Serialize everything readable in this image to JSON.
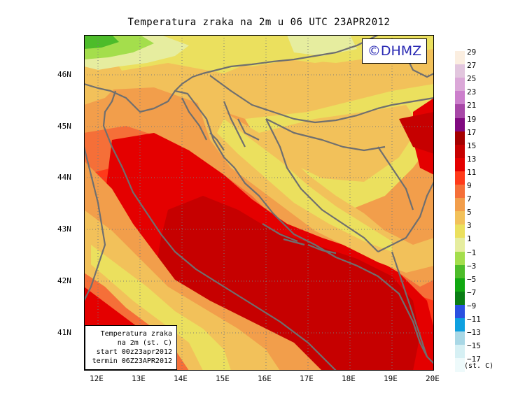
{
  "title": "Temperatura zraka na 2m u 06 UTC 23APR2012",
  "watermark": "©DHMZ",
  "lat_labels": [
    "46N",
    "45N",
    "44N",
    "43N",
    "42N",
    "41N"
  ],
  "lon_labels": [
    "12E",
    "13E",
    "14E",
    "15E",
    "16E",
    "17E",
    "18E",
    "19E",
    "20E"
  ],
  "info_box": {
    "line1": "Temperatura zraka",
    "line2": "na 2m (st. C)",
    "line3": "start 00z23apr2012",
    "line4": "termin 06Z23APR2012"
  },
  "legend": {
    "unit": "(st. C)",
    "labels": [
      "29",
      "27",
      "25",
      "23",
      "21",
      "19",
      "17",
      "15",
      "13",
      "11",
      "9",
      "7",
      "5",
      "3",
      "1",
      "−1",
      "−3",
      "−5",
      "−7",
      "−9",
      "−11",
      "−13",
      "−15",
      "−17"
    ],
    "colors": [
      "#fbeee0",
      "#e2c6de",
      "#dba8d8",
      "#cc7fcc",
      "#a747a7",
      "#800a80",
      "#a50000",
      "#c60000",
      "#e40000",
      "#ff3a1a",
      "#f56f38",
      "#f29e4b",
      "#f2c15a",
      "#ebe05e",
      "#e6ed9f",
      "#a4de4c",
      "#4dbc2a",
      "#11a811",
      "#0a7d15",
      "#2a50e0",
      "#0ea0e0",
      "#a9d8e6",
      "#d6f0f4",
      "#eefafb"
    ]
  },
  "colors": {
    "border": "#6f6f6f",
    "grid": "#7a7a7a",
    "watermark": "#2a2ab4"
  }
}
